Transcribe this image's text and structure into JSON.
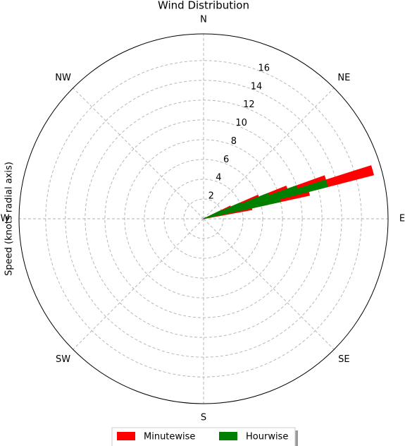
{
  "chart_data": {
    "type": "polar_bar",
    "title": "Wind Distribution",
    "ylabel": "Speed (knots radial axis)",
    "x": [
      66,
      68,
      70,
      72,
      74,
      76,
      78
    ],
    "xlim": [
      0,
      360
    ],
    "xticks": [
      {
        "value": 0,
        "label": "N"
      },
      {
        "value": 45,
        "label": "NE"
      },
      {
        "value": 90,
        "label": "E"
      },
      {
        "value": 135,
        "label": "SE"
      },
      {
        "value": 180,
        "label": "S"
      },
      {
        "value": 225,
        "label": "SW"
      },
      {
        "value": 270,
        "label": "W"
      },
      {
        "value": 315,
        "label": "NW"
      }
    ],
    "ylim": [
      0,
      18.7
    ],
    "yticks": [
      2,
      4,
      6,
      8,
      10,
      12,
      14,
      16
    ],
    "grid": true,
    "series": [
      {
        "name": "Minutewise",
        "color": "#ff0000",
        "values": [
          3,
          6,
          9,
          13,
          17.8,
          11,
          5
        ]
      },
      {
        "name": "Hourwise",
        "color": "#008000",
        "values": [
          2,
          4,
          7,
          10,
          13,
          8,
          null
        ]
      }
    ]
  }
}
